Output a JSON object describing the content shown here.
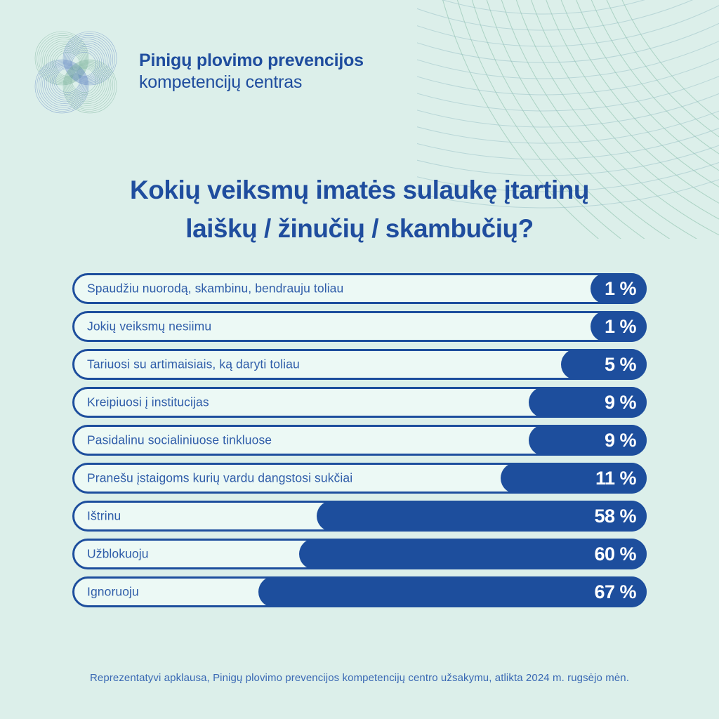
{
  "colors": {
    "background": "#dcefea",
    "bar_fill": "#1d4e9d",
    "bar_track": "#ecf9f5",
    "bar_border": "#1d4e9d",
    "label_text": "#2f5da9",
    "title_text": "#1f4d9e",
    "value_text": "#ffffff",
    "footer_text": "#3a69b4",
    "deco_green": "#8ac0aa",
    "deco_teal": "#93bdc4",
    "logo_green": "#6aa88c",
    "logo_blue": "#4f74bd"
  },
  "header": {
    "logo_icon": "spirograph-clover-logo",
    "brand_line1": "Pinigų plovimo prevencijos",
    "brand_line2": "kompetencijų centras"
  },
  "title": {
    "line1": "Kokių veiksmų imatės sulaukę įtartinų",
    "line2": "laiškų / žinučių / skambučių?"
  },
  "chart_data": {
    "type": "bar",
    "orientation": "horizontal",
    "unit": "%",
    "title": "Kokių veiksmų imatės sulaukę įtartinų laiškų / žinučių / skambučių?",
    "legend_position": "none",
    "grid": false,
    "value_anchor": "right",
    "categories": [
      "Spaudžiu nuorodą, skambinu, bendrauju toliau",
      "Jokių veiksmų nesiimu",
      "Tariuosi su artimaisiais, ką daryti toliau",
      "Kreipiuosi į institucijas",
      "Pasidalinu socialiniuose tinkluose",
      "Pranešu įstaigoms kurių vardu dangstosi sukčiai",
      "Ištrinu",
      "Užblokuoju",
      "Ignoruoju"
    ],
    "values": [
      1,
      1,
      5,
      9,
      9,
      11,
      58,
      60,
      67
    ],
    "value_labels": [
      "1 %",
      "1 %",
      "5 %",
      "9 %",
      "9 %",
      "11 %",
      "58 %",
      "60 %",
      "67 %"
    ],
    "display_fill_pct": [
      9.8,
      9.8,
      14.9,
      20.5,
      20.5,
      25.4,
      57.5,
      60.5,
      67.6
    ],
    "xlim": [
      0,
      100
    ]
  },
  "footer": {
    "note": "Reprezentatyvi apklausa, Pinigų plovimo prevencijos kompetencijų centro užsakymu, atlikta 2024 m. rugsėjo mėn."
  }
}
